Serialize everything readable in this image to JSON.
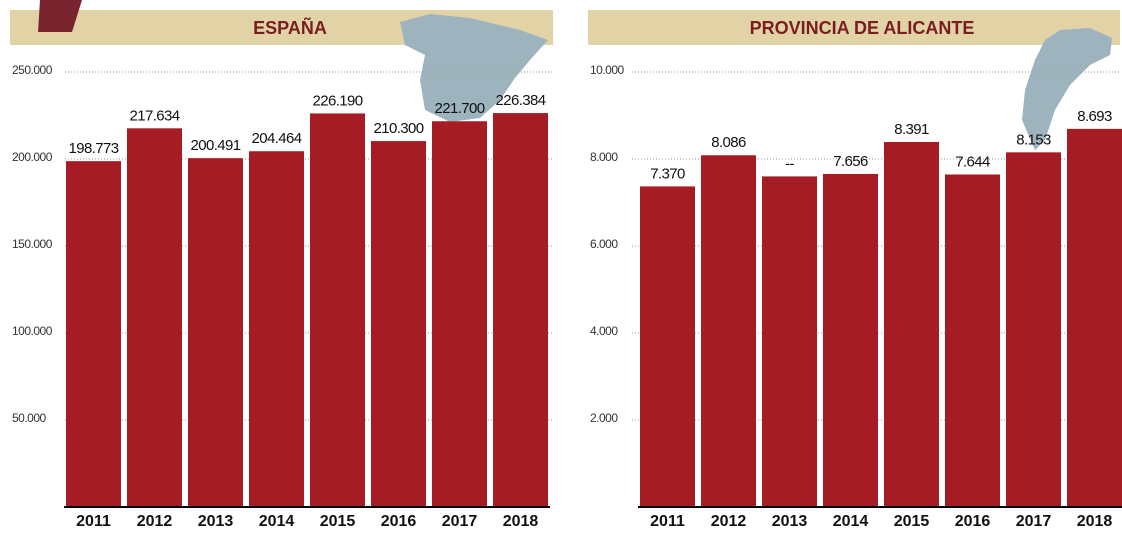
{
  "chart_data": [
    {
      "type": "bar",
      "title": "ESPAÑA",
      "categories": [
        "2011",
        "2012",
        "2013",
        "2014",
        "2015",
        "2016",
        "2017",
        "2018"
      ],
      "values": [
        198773,
        217634,
        200491,
        204464,
        226190,
        210300,
        221700,
        226384
      ],
      "value_labels": [
        "198.773",
        "217.634",
        "200.491",
        "204.464",
        "226.190",
        "210.300",
        "221.700",
        "226.384"
      ],
      "color": "#a51c24",
      "ylim": [
        0,
        250000
      ],
      "yticks": [
        {
          "value": 50000,
          "label": "50.000"
        },
        {
          "value": 100000,
          "label": "100.000"
        },
        {
          "value": 150000,
          "label": "150.000"
        },
        {
          "value": 200000,
          "label": "200.000"
        },
        {
          "value": 250000,
          "label": "250.000"
        }
      ],
      "grid": true
    },
    {
      "type": "bar",
      "title": "PROVINCIA DE ALICANTE",
      "categories": [
        "2011",
        "2012",
        "2013",
        "2014",
        "2015",
        "2016",
        "2017",
        "2018"
      ],
      "values": [
        7370,
        8086,
        7600,
        7656,
        8391,
        7644,
        8153,
        8693
      ],
      "value_labels": [
        "7.370",
        "8.086",
        "--",
        "7.656",
        "8.391",
        "7.644",
        "8.153",
        "8.693"
      ],
      "color": "#a51c24",
      "ylim": [
        0,
        10000
      ],
      "yticks": [
        {
          "value": 2000,
          "label": "2.000"
        },
        {
          "value": 4000,
          "label": "4.000"
        },
        {
          "value": 6000,
          "label": "6.000"
        },
        {
          "value": 8000,
          "label": "8.000"
        },
        {
          "value": 10000,
          "label": "10.000"
        }
      ],
      "grid": true
    }
  ]
}
